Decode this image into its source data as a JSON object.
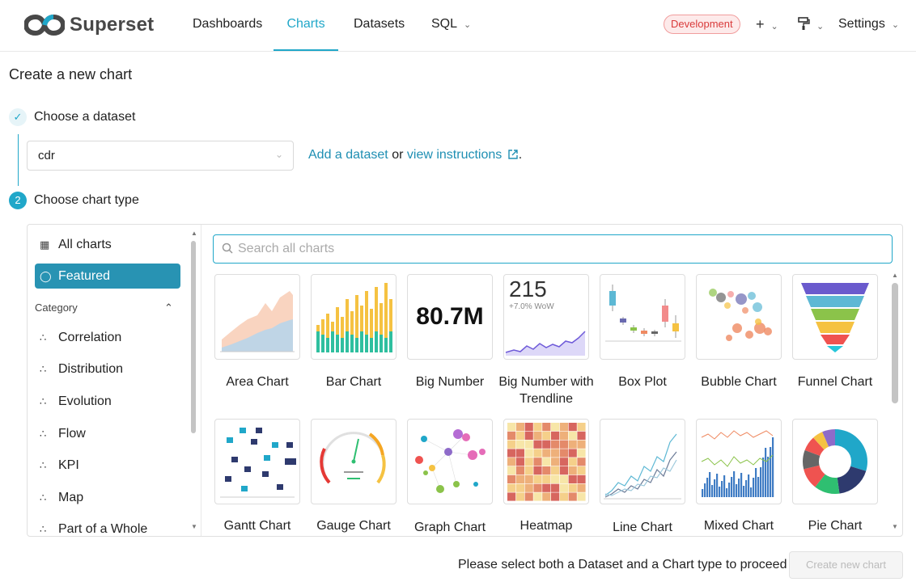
{
  "app": {
    "name": "Superset"
  },
  "nav": {
    "dashboards": "Dashboards",
    "charts": "Charts",
    "datasets": "Datasets",
    "sql": "SQL",
    "environment": "Development",
    "settings": "Settings"
  },
  "page": {
    "title": "Create a new chart"
  },
  "step1": {
    "label": "Choose a dataset",
    "dataset_value": "cdr",
    "add_dataset": "Add a dataset",
    "or": "or",
    "view_instructions": "view instructions",
    "period": "."
  },
  "step2": {
    "number": "2",
    "label": "Choose chart type"
  },
  "sidebar": {
    "all_charts": "All charts",
    "featured": "Featured",
    "category_header": "Category",
    "categories": [
      "Correlation",
      "Distribution",
      "Evolution",
      "Flow",
      "KPI",
      "Map",
      "Part of a Whole"
    ]
  },
  "search": {
    "placeholder": "Search all charts",
    "value": ""
  },
  "charts": [
    {
      "name": "Area Chart",
      "icon": "area-chart-thumbnail"
    },
    {
      "name": "Bar Chart",
      "icon": "bar-chart-thumbnail"
    },
    {
      "name": "Big Number",
      "icon": "big-number-thumbnail",
      "thumb_text": "80.7M"
    },
    {
      "name": "Big Number with Trendline",
      "icon": "big-number-trendline-thumbnail",
      "thumb_text": "215",
      "thumb_subtext": "+7.0% WoW"
    },
    {
      "name": "Box Plot",
      "icon": "box-plot-thumbnail"
    },
    {
      "name": "Bubble Chart",
      "icon": "bubble-chart-thumbnail"
    },
    {
      "name": "Funnel Chart",
      "icon": "funnel-chart-thumbnail"
    },
    {
      "name": "Gantt Chart",
      "icon": "gantt-chart-thumbnail"
    },
    {
      "name": "Gauge Chart",
      "icon": "gauge-chart-thumbnail"
    },
    {
      "name": "Graph Chart",
      "icon": "graph-chart-thumbnail"
    },
    {
      "name": "Heatmap",
      "icon": "heatmap-thumbnail"
    },
    {
      "name": "Line Chart",
      "icon": "line-chart-thumbnail"
    },
    {
      "name": "Mixed Chart",
      "icon": "mixed-chart-thumbnail"
    },
    {
      "name": "Pie Chart",
      "icon": "pie-chart-thumbnail"
    }
  ],
  "footer": {
    "message": "Please select both a Dataset and a Chart type to proceed",
    "create_button": "Create new chart"
  },
  "colors": {
    "accent": "#20a7c9",
    "selected": "#2893b3",
    "env_badge": "#d93b3b"
  }
}
